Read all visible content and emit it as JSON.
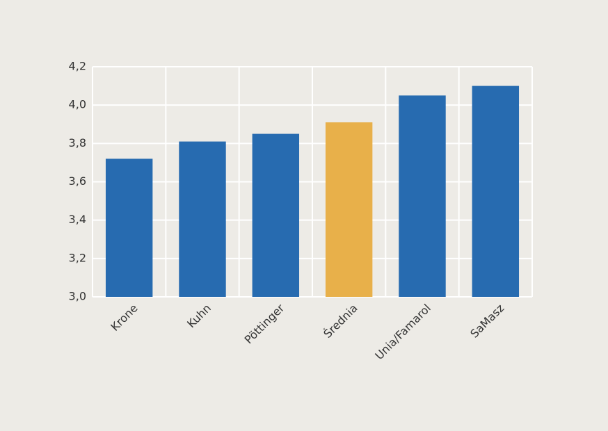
{
  "chart_data": {
    "type": "bar",
    "categories": [
      "Krone",
      "Kuhn",
      "Pöttinger",
      "Średnia",
      "Unia/Famarol",
      "SaMasz"
    ],
    "values": [
      3.72,
      3.81,
      3.85,
      3.91,
      4.05,
      4.1
    ],
    "colors": [
      "#276bb0",
      "#276bb0",
      "#276bb0",
      "#e8b04a",
      "#276bb0",
      "#276bb0"
    ],
    "ylim": [
      3.0,
      4.2
    ],
    "yticks": [
      {
        "value": 3.0,
        "label": "3,0"
      },
      {
        "value": 3.2,
        "label": "3,2"
      },
      {
        "value": 3.4,
        "label": "3,4"
      },
      {
        "value": 3.6,
        "label": "3,6"
      },
      {
        "value": 3.8,
        "label": "3,8"
      },
      {
        "value": 4.0,
        "label": "4,0"
      },
      {
        "value": 4.2,
        "label": "4,2"
      }
    ],
    "grid": true
  }
}
